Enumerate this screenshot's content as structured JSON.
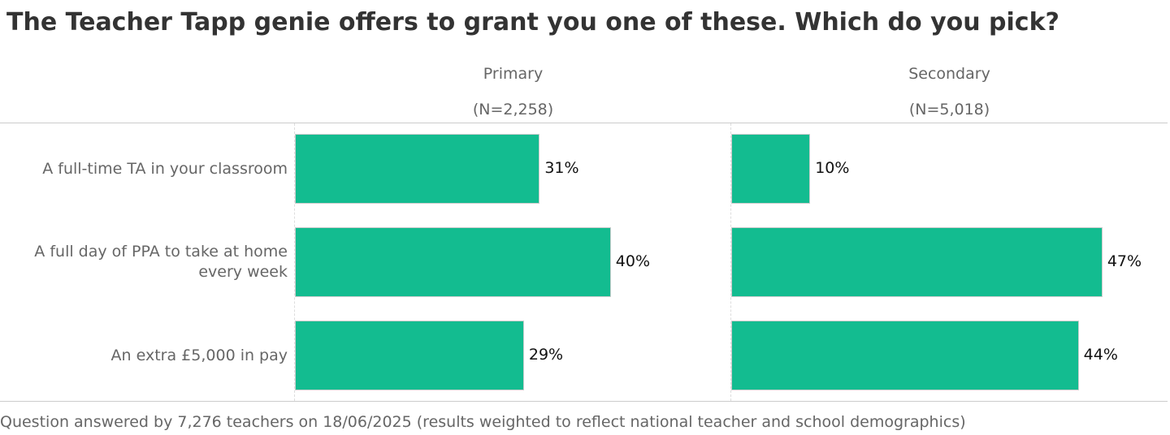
{
  "chart_data": {
    "type": "bar",
    "orientation": "horizontal",
    "title": "The Teacher Tapp genie offers to grant you one of these. Which do you pick?",
    "categories": [
      "A full-time TA in your classroom",
      "A full day of PPA to take at home every week",
      "An extra £5,000 in pay"
    ],
    "panels": [
      {
        "name": "Primary",
        "n_label": "(N=2,258)",
        "values": [
          31,
          40,
          29
        ],
        "labels": [
          "31%",
          "40%",
          "29%"
        ]
      },
      {
        "name": "Secondary",
        "n_label": "(N=5,018)",
        "values": [
          10,
          47,
          44
        ],
        "labels": [
          "10%",
          "47%",
          "44%"
        ]
      }
    ],
    "bar_color": "#13bc90",
    "footer": "Question answered by 7,276 teachers on 18/06/2025 (results weighted to reflect national teacher and school demographics)"
  }
}
